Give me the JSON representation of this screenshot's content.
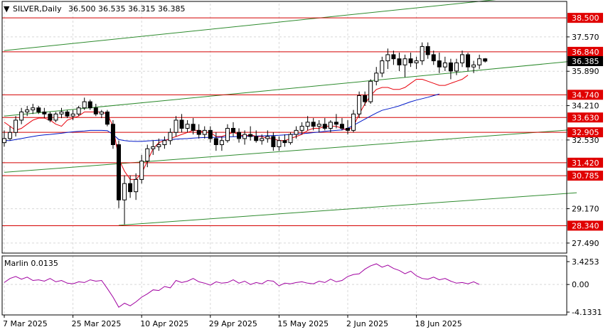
{
  "header": {
    "arrow": "▼",
    "title": "SILVER,Daily",
    "ohlc": "36.500 36.535 36.315 36.385"
  },
  "indicator": {
    "label": "Marlin 0.0135",
    "axis_labels": [
      "3.4253",
      "0.00",
      "-4.1331"
    ]
  },
  "colors": {
    "candle_body": "#000000",
    "bull_fill": "#ffffff",
    "red_ma": "#e8000b",
    "blue_ma": "#0018c8",
    "green_channel": "#2e8b2e",
    "red_level": "#d40000",
    "marlin_line": "#a000a0",
    "grid": "#d8d8d8",
    "level_badge_bg": "#e00000",
    "price_badge_bg": "#000000"
  },
  "chart_data": {
    "type": "candlestick",
    "symbol": "SILVER",
    "timeframe": "Daily",
    "y_axis_labels": [
      "37.570",
      "35.890",
      "34.210",
      "32.530",
      "29.170",
      "27.490"
    ],
    "ylim": [
      27.0,
      39.2
    ],
    "x_axis_labels": [
      "7 Mar 2025",
      "25 Mar 2025",
      "10 Apr 2025",
      "29 Apr 2025",
      "15 May 2025",
      "2 Jun 2025",
      "18 Jun 2025"
    ],
    "x_label_bar_index": [
      0,
      12,
      24,
      36,
      48,
      60,
      72
    ],
    "levels": [
      {
        "label": "38.500",
        "value": 38.5
      },
      {
        "label": "36.840",
        "value": 36.84
      },
      {
        "label": "34.740",
        "value": 34.74
      },
      {
        "label": "33.630",
        "value": 33.63
      },
      {
        "label": "32.905",
        "value": 32.905
      },
      {
        "label": "31.420",
        "value": 31.42
      },
      {
        "label": "30.785",
        "value": 30.785
      },
      {
        "label": "28.340",
        "value": 28.34
      }
    ],
    "current_price": {
      "label": "36.385",
      "value": 36.385
    },
    "channel_lines": [
      {
        "start": [
          0,
          36.9
        ],
        "end": [
          100,
          39.8
        ]
      },
      {
        "start": [
          0,
          33.7
        ],
        "end": [
          100,
          36.4
        ]
      },
      {
        "start": [
          0,
          30.95
        ],
        "end": [
          100,
          33.05
        ]
      },
      {
        "start": [
          20,
          28.36
        ],
        "end": [
          100,
          29.95
        ]
      }
    ],
    "candles": [
      [
        32.4,
        33.0,
        32.2,
        32.6
      ],
      [
        32.6,
        33.2,
        32.5,
        32.9
      ],
      [
        32.9,
        33.7,
        32.7,
        33.5
      ],
      [
        33.5,
        34.1,
        33.3,
        33.9
      ],
      [
        33.9,
        34.2,
        33.7,
        34.0
      ],
      [
        34.0,
        34.3,
        33.8,
        34.1
      ],
      [
        34.1,
        34.2,
        33.8,
        33.9
      ],
      [
        33.9,
        34.1,
        33.6,
        33.8
      ],
      [
        33.8,
        33.9,
        33.4,
        33.5
      ],
      [
        33.5,
        33.9,
        33.4,
        33.8
      ],
      [
        33.8,
        34.1,
        33.6,
        33.9
      ],
      [
        33.9,
        34.0,
        33.6,
        33.7
      ],
      [
        33.7,
        34.0,
        33.5,
        33.8
      ],
      [
        33.8,
        34.2,
        33.7,
        34.1
      ],
      [
        34.1,
        34.6,
        34.0,
        34.4
      ],
      [
        34.4,
        34.5,
        34.0,
        34.1
      ],
      [
        34.1,
        34.3,
        33.7,
        33.8
      ],
      [
        33.8,
        34.0,
        33.6,
        33.9
      ],
      [
        33.9,
        34.0,
        33.2,
        33.3
      ],
      [
        33.3,
        33.5,
        32.1,
        32.3
      ],
      [
        32.3,
        32.5,
        29.2,
        29.6
      ],
      [
        29.6,
        30.8,
        28.4,
        30.4
      ],
      [
        30.4,
        30.8,
        29.7,
        30.0
      ],
      [
        30.0,
        30.9,
        29.6,
        30.6
      ],
      [
        30.6,
        31.8,
        30.4,
        31.5
      ],
      [
        31.5,
        32.3,
        31.2,
        32.1
      ],
      [
        32.1,
        32.5,
        31.8,
        32.2
      ],
      [
        32.2,
        32.6,
        32.0,
        32.3
      ],
      [
        32.3,
        32.7,
        32.1,
        32.5
      ],
      [
        32.5,
        33.1,
        32.3,
        32.9
      ],
      [
        32.9,
        33.7,
        32.7,
        33.5
      ],
      [
        33.5,
        33.8,
        32.9,
        33.1
      ],
      [
        33.1,
        33.5,
        32.9,
        33.3
      ],
      [
        33.3,
        33.6,
        32.8,
        33.0
      ],
      [
        33.0,
        33.3,
        32.6,
        32.8
      ],
      [
        32.8,
        33.2,
        32.6,
        33.0
      ],
      [
        33.0,
        33.2,
        32.4,
        32.6
      ],
      [
        32.6,
        32.9,
        32.0,
        32.3
      ],
      [
        32.3,
        32.7,
        32.0,
        32.5
      ],
      [
        32.5,
        33.3,
        32.4,
        33.1
      ],
      [
        33.1,
        33.4,
        32.7,
        32.9
      ],
      [
        32.9,
        33.1,
        32.4,
        32.6
      ],
      [
        32.6,
        33.0,
        32.3,
        32.8
      ],
      [
        32.8,
        33.2,
        32.5,
        32.7
      ],
      [
        32.7,
        33.0,
        32.4,
        32.5
      ],
      [
        32.5,
        32.8,
        32.3,
        32.6
      ],
      [
        32.6,
        33.0,
        32.4,
        32.7
      ],
      [
        32.7,
        32.9,
        32.0,
        32.2
      ],
      [
        32.2,
        32.7,
        32.0,
        32.5
      ],
      [
        32.5,
        32.8,
        32.2,
        32.4
      ],
      [
        32.4,
        32.9,
        32.3,
        32.8
      ],
      [
        32.8,
        33.2,
        32.6,
        33.0
      ],
      [
        33.0,
        33.4,
        32.8,
        33.2
      ],
      [
        33.2,
        33.7,
        33.0,
        33.4
      ],
      [
        33.4,
        33.6,
        33.0,
        33.2
      ],
      [
        33.2,
        33.5,
        32.9,
        33.3
      ],
      [
        33.3,
        33.6,
        33.0,
        33.1
      ],
      [
        33.1,
        33.5,
        32.9,
        33.4
      ],
      [
        33.4,
        33.8,
        33.1,
        33.3
      ],
      [
        33.3,
        33.6,
        33.0,
        33.1
      ],
      [
        33.1,
        33.5,
        32.8,
        33.0
      ],
      [
        33.0,
        34.0,
        32.9,
        33.8
      ],
      [
        33.8,
        34.9,
        33.6,
        34.7
      ],
      [
        34.7,
        34.9,
        34.2,
        34.4
      ],
      [
        34.4,
        35.5,
        34.3,
        35.4
      ],
      [
        35.4,
        36.1,
        35.2,
        35.8
      ],
      [
        35.8,
        36.6,
        35.6,
        36.4
      ],
      [
        36.4,
        37.0,
        36.0,
        36.7
      ],
      [
        36.7,
        36.9,
        36.2,
        36.5
      ],
      [
        36.5,
        36.8,
        35.9,
        36.2
      ],
      [
        36.2,
        36.7,
        35.6,
        36.5
      ],
      [
        36.5,
        36.8,
        36.1,
        36.3
      ],
      [
        36.3,
        36.6,
        36.0,
        36.4
      ],
      [
        36.4,
        37.3,
        36.2,
        37.1
      ],
      [
        37.1,
        37.3,
        36.5,
        36.7
      ],
      [
        36.7,
        36.9,
        36.2,
        36.4
      ],
      [
        36.4,
        36.8,
        35.8,
        36.1
      ],
      [
        36.1,
        36.6,
        35.9,
        36.3
      ],
      [
        36.3,
        36.5,
        35.5,
        35.9
      ],
      [
        35.9,
        36.5,
        35.7,
        36.3
      ],
      [
        36.3,
        36.9,
        36.1,
        36.7
      ],
      [
        36.7,
        36.8,
        35.9,
        36.1
      ],
      [
        36.1,
        36.4,
        35.8,
        36.2
      ],
      [
        36.2,
        36.7,
        36.0,
        36.5
      ],
      [
        36.5,
        36.535,
        36.315,
        36.385
      ]
    ],
    "red_ma": [
      33.4,
      33.2,
      33.0,
      33.1,
      33.3,
      33.5,
      33.6,
      33.6,
      33.5,
      33.3,
      33.2,
      33.5,
      33.6,
      33.7,
      33.9,
      33.9,
      33.9,
      33.9,
      33.8,
      33.2,
      31.6,
      31.0,
      30.6,
      30.6,
      30.9,
      31.5,
      32.1,
      32.4,
      32.5,
      32.6,
      32.7,
      32.8,
      32.9,
      33.0,
      33.0,
      32.9,
      32.9,
      32.7,
      32.7,
      32.8,
      32.9,
      32.8,
      32.7,
      32.8,
      32.7,
      32.7,
      32.6,
      32.6,
      32.5,
      32.5,
      32.6,
      32.7,
      32.8,
      33.0,
      33.1,
      33.1,
      33.2,
      33.2,
      33.2,
      33.1,
      33.0,
      33.2,
      33.8,
      34.3,
      34.7,
      35.0,
      35.1,
      35.1,
      35.0,
      35.0,
      35.1,
      35.3,
      35.5,
      35.5,
      35.4,
      35.3,
      35.2,
      35.2,
      35.3,
      35.4,
      35.5,
      35.7
    ],
    "blue_ma": [
      32.5,
      32.5,
      32.55,
      32.6,
      32.65,
      32.7,
      32.75,
      32.78,
      32.8,
      32.83,
      32.86,
      32.9,
      32.93,
      32.95,
      32.97,
      33.0,
      33.0,
      33.0,
      32.99,
      32.8,
      32.55,
      32.5,
      32.47,
      32.46,
      32.46,
      32.48,
      32.5,
      32.52,
      32.53,
      32.55,
      32.57,
      32.59,
      32.6,
      32.62,
      32.64,
      32.65,
      32.66,
      32.66,
      32.67,
      32.68,
      32.69,
      32.7,
      32.71,
      32.72,
      32.72,
      32.73,
      32.74,
      32.75,
      32.76,
      32.78,
      32.8,
      32.82,
      32.84,
      32.86,
      32.89,
      32.92,
      32.95,
      32.98,
      33.0,
      33.02,
      33.1,
      33.25,
      33.4,
      33.55,
      33.7,
      33.85,
      33.98,
      34.05,
      34.12,
      34.2,
      34.3,
      34.4,
      34.48,
      34.55,
      34.62,
      34.7,
      34.78
    ],
    "marlin": {
      "ylim": [
        -4.1331,
        3.4253
      ],
      "values": [
        0.3,
        0.9,
        1.2,
        0.8,
        1.1,
        0.6,
        0.7,
        0.5,
        0.9,
        0.4,
        0.6,
        0.2,
        0.1,
        0.4,
        0.3,
        0.7,
        0.5,
        0.6,
        -0.6,
        -1.9,
        -3.4,
        -2.8,
        -3.2,
        -2.6,
        -1.9,
        -1.4,
        -0.8,
        -0.9,
        -0.3,
        -0.5,
        0.6,
        0.3,
        0.5,
        0.9,
        0.4,
        0.2,
        -0.1,
        0.4,
        0.2,
        0.3,
        0.7,
        0.2,
        0.5,
        0.0,
        0.3,
        0.1,
        0.6,
        0.5,
        -0.2,
        0.2,
        0.1,
        0.3,
        0.4,
        0.2,
        0.1,
        0.5,
        0.3,
        0.8,
        0.4,
        0.6,
        1.2,
        1.5,
        1.6,
        2.3,
        2.8,
        3.1,
        2.6,
        2.9,
        2.4,
        2.1,
        1.6,
        2.0,
        1.3,
        0.9,
        0.8,
        1.1,
        0.7,
        0.9,
        0.5,
        0.2,
        0.3,
        0.1,
        0.4,
        0.0
      ]
    }
  }
}
